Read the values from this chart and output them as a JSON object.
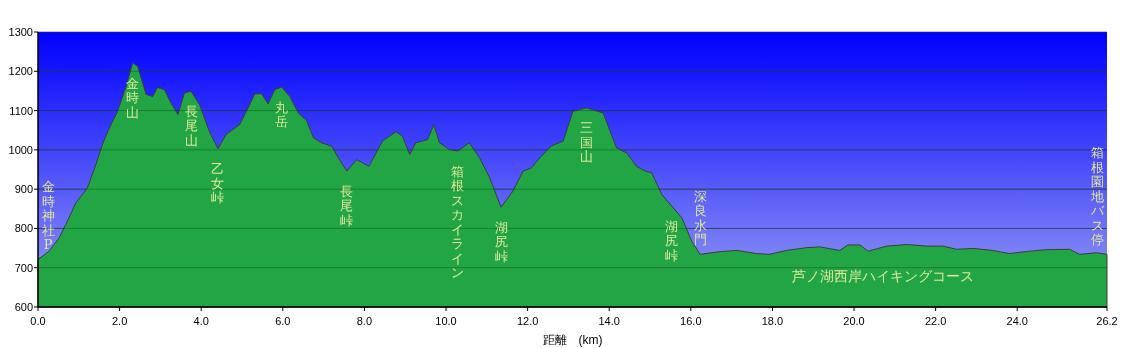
{
  "chart_data": {
    "type": "area",
    "xlabel": "距離　(km)",
    "color": "#22a544",
    "grid": "y",
    "xlim": [
      0,
      26.2
    ],
    "ylim": [
      600,
      1300
    ],
    "xticks": [
      {
        "value": 0,
        "label": "0.0"
      },
      {
        "value": 2,
        "label": "2.0"
      },
      {
        "value": 4,
        "label": "4.0"
      },
      {
        "value": 6,
        "label": "6.0"
      },
      {
        "value": 8,
        "label": "8.0"
      },
      {
        "value": 10,
        "label": "10.0"
      },
      {
        "value": 12,
        "label": "12.0"
      },
      {
        "value": 14,
        "label": "14.0"
      },
      {
        "value": 16,
        "label": "16.0"
      },
      {
        "value": 18,
        "label": "18.0"
      },
      {
        "value": 20,
        "label": "20.0"
      },
      {
        "value": 22,
        "label": "22.0"
      },
      {
        "value": 24,
        "label": "24.0"
      },
      {
        "value": 26.2,
        "label": "26.2"
      }
    ],
    "yticks": [
      600,
      700,
      800,
      900,
      1000,
      1100,
      1200,
      1300
    ],
    "x": [
      0,
      0.27,
      0.52,
      0.68,
      0.93,
      1.21,
      1.42,
      1.58,
      1.75,
      1.95,
      2.16,
      2.32,
      2.44,
      2.65,
      2.81,
      2.93,
      3.1,
      3.26,
      3.43,
      3.59,
      3.75,
      3.96,
      4.2,
      4.41,
      4.61,
      4.78,
      4.94,
      5.15,
      5.31,
      5.48,
      5.64,
      5.8,
      5.97,
      6.17,
      6.38,
      6.58,
      6.75,
      6.95,
      7.2,
      7.36,
      7.57,
      7.81,
      8.11,
      8.44,
      8.77,
      8.93,
      9.11,
      9.26,
      9.55,
      9.7,
      9.84,
      10.08,
      10.29,
      10.57,
      10.82,
      11.07,
      11.35,
      11.64,
      11.89,
      12.09,
      12.3,
      12.58,
      12.87,
      13.11,
      13.44,
      13.85,
      14.18,
      14.43,
      14.67,
      14.88,
      15.04,
      15.29,
      15.53,
      15.78,
      16.02,
      16.23,
      16.72,
      17.13,
      17.61,
      17.93,
      18.34,
      18.83,
      19.16,
      19.65,
      19.85,
      20.14,
      20.35,
      20.8,
      21.29,
      21.78,
      22.18,
      22.51,
      22.92,
      23.4,
      23.81,
      24.3,
      24.71,
      25.28,
      25.53,
      25.94,
      26.2
    ],
    "values": [
      721,
      742,
      776,
      810,
      865,
      903,
      963,
      1014,
      1056,
      1098,
      1162,
      1221,
      1213,
      1141,
      1136,
      1159,
      1153,
      1119,
      1090,
      1145,
      1149,
      1115,
      1047,
      1003,
      1039,
      1052,
      1064,
      1107,
      1142,
      1143,
      1117,
      1153,
      1160,
      1136,
      1094,
      1075,
      1031,
      1018,
      1009,
      980,
      946,
      975,
      958,
      1022,
      1046,
      1035,
      988,
      1018,
      1026,
      1064,
      1018,
      1001,
      997,
      1018,
      980,
      929,
      854,
      895,
      946,
      954,
      980,
      1010,
      1022,
      1098,
      1107,
      1094,
      1005,
      992,
      958,
      946,
      942,
      886,
      857,
      827,
      768,
      734,
      741,
      744,
      736,
      734,
      744,
      751,
      753,
      744,
      758,
      758,
      742,
      755,
      759,
      755,
      755,
      747,
      749,
      744,
      736,
      742,
      746,
      747,
      734,
      738,
      734
    ],
    "annotations": [
      {
        "text": "金時神社P",
        "x": 0,
        "y": 721
      },
      {
        "text": "金時山",
        "x": 2.32,
        "y": 1221
      },
      {
        "text": "長尾山",
        "x": 3.75,
        "y": 1149
      },
      {
        "text": "乙女峠",
        "x": 4.41,
        "y": 1003
      },
      {
        "text": "丸岳",
        "x": 5.97,
        "y": 1160
      },
      {
        "text": "長尾峠",
        "x": 7.57,
        "y": 946
      },
      {
        "text": "箱根スカイライン",
        "x": 10.29,
        "y": 997
      },
      {
        "text": "湖尻峠",
        "x": 11.35,
        "y": 854
      },
      {
        "text": "三国山",
        "x": 13.44,
        "y": 1107
      },
      {
        "text": "湖尻峠",
        "x": 15.53,
        "y": 857
      },
      {
        "text": "深良水門",
        "x": 16.23,
        "y": 734
      },
      "芦ノ湖西岸ハイキングコース",
      {
        "text": "箱根園地バス停",
        "x": 26.2,
        "y": 734
      }
    ]
  }
}
